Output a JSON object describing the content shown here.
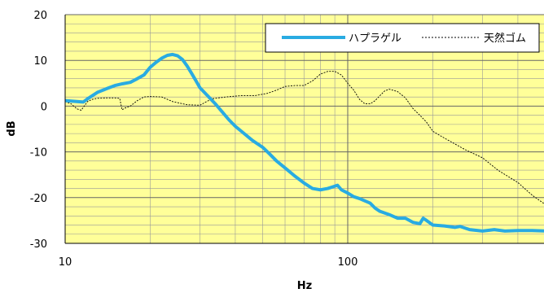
{
  "chart_data": {
    "type": "line",
    "xlabel": "Hz",
    "ylabel": "dB",
    "x_scale": "log",
    "xlim": [
      10,
      500
    ],
    "ylim": [
      -30,
      20
    ],
    "x_ticks": [
      {
        "value": 10,
        "label": "10"
      },
      {
        "value": 100,
        "label": "100"
      }
    ],
    "y_ticks": [
      {
        "value": 20,
        "label": "20"
      },
      {
        "value": 10,
        "label": "10"
      },
      {
        "value": 0,
        "label": "0"
      },
      {
        "value": -10,
        "label": "-10"
      },
      {
        "value": -20,
        "label": "-20"
      },
      {
        "value": -30,
        "label": "-30"
      }
    ],
    "grid": true,
    "legend_position": "top-right",
    "colors": {
      "background": "#ffff99",
      "grid": "#888888",
      "series_1": "#29abe2",
      "series_2": "#000000"
    },
    "series": [
      {
        "name": "ハプラゲル",
        "style": "solid-thick",
        "points": [
          [
            10,
            1.2
          ],
          [
            11,
            1.0
          ],
          [
            11.6,
            0.9
          ],
          [
            12,
            1.6
          ],
          [
            13,
            3.0
          ],
          [
            14,
            3.8
          ],
          [
            15,
            4.5
          ],
          [
            16,
            4.9
          ],
          [
            17,
            5.2
          ],
          [
            18,
            6.0
          ],
          [
            19,
            6.8
          ],
          [
            20,
            8.5
          ],
          [
            21,
            9.6
          ],
          [
            22,
            10.5
          ],
          [
            23,
            11.1
          ],
          [
            24,
            11.3
          ],
          [
            25,
            11.0
          ],
          [
            26,
            10.2
          ],
          [
            27,
            8.8
          ],
          [
            28,
            7.2
          ],
          [
            29,
            5.6
          ],
          [
            30,
            4.0
          ],
          [
            32,
            2.2
          ],
          [
            34,
            0.5
          ],
          [
            36,
            -1.3
          ],
          [
            38,
            -3.0
          ],
          [
            40,
            -4.4
          ],
          [
            43,
            -6.0
          ],
          [
            46,
            -7.5
          ],
          [
            50,
            -9.0
          ],
          [
            53,
            -10.5
          ],
          [
            56,
            -12.0
          ],
          [
            60,
            -13.5
          ],
          [
            65,
            -15.3
          ],
          [
            70,
            -16.8
          ],
          [
            75,
            -18.0
          ],
          [
            80,
            -18.3
          ],
          [
            85,
            -18.0
          ],
          [
            90,
            -17.5
          ],
          [
            92,
            -17.3
          ],
          [
            95,
            -18.3
          ],
          [
            100,
            -19.0
          ],
          [
            105,
            -19.8
          ],
          [
            110,
            -20.2
          ],
          [
            120,
            -21.2
          ],
          [
            125,
            -22.3
          ],
          [
            130,
            -23.0
          ],
          [
            140,
            -23.7
          ],
          [
            150,
            -24.5
          ],
          [
            160,
            -24.5
          ],
          [
            170,
            -25.4
          ],
          [
            180,
            -25.7
          ],
          [
            185,
            -24.5
          ],
          [
            190,
            -25.0
          ],
          [
            200,
            -26.0
          ],
          [
            220,
            -26.2
          ],
          [
            240,
            -26.5
          ],
          [
            250,
            -26.3
          ],
          [
            270,
            -27.0
          ],
          [
            300,
            -27.3
          ],
          [
            330,
            -27.0
          ],
          [
            360,
            -27.3
          ],
          [
            400,
            -27.2
          ],
          [
            450,
            -27.2
          ],
          [
            500,
            -27.3
          ]
        ]
      },
      {
        "name": "天然ゴム",
        "style": "dashed-thin",
        "points": [
          [
            10,
            1.0
          ],
          [
            10.5,
            0.5
          ],
          [
            11,
            -0.6
          ],
          [
            11.4,
            -0.9
          ],
          [
            12,
            1.0
          ],
          [
            12.5,
            1.5
          ],
          [
            13,
            1.7
          ],
          [
            14,
            1.8
          ],
          [
            15,
            1.8
          ],
          [
            15.6,
            1.7
          ],
          [
            15.9,
            -0.8
          ],
          [
            16.3,
            -0.4
          ],
          [
            17,
            0.0
          ],
          [
            18,
            1.2
          ],
          [
            19,
            2.0
          ],
          [
            20,
            2.1
          ],
          [
            22,
            2.0
          ],
          [
            24,
            1.0
          ],
          [
            27,
            0.3
          ],
          [
            30,
            0.2
          ],
          [
            33,
            1.6
          ],
          [
            37,
            2.0
          ],
          [
            42,
            2.3
          ],
          [
            47,
            2.3
          ],
          [
            52,
            2.8
          ],
          [
            56,
            3.5
          ],
          [
            60,
            4.3
          ],
          [
            65,
            4.5
          ],
          [
            70,
            4.5
          ],
          [
            75,
            5.5
          ],
          [
            80,
            7.0
          ],
          [
            85,
            7.6
          ],
          [
            90,
            7.6
          ],
          [
            95,
            6.8
          ],
          [
            100,
            5.0
          ],
          [
            105,
            3.5
          ],
          [
            110,
            1.5
          ],
          [
            115,
            0.5
          ],
          [
            120,
            0.5
          ],
          [
            125,
            1.2
          ],
          [
            130,
            2.3
          ],
          [
            135,
            3.3
          ],
          [
            140,
            3.7
          ],
          [
            150,
            3.2
          ],
          [
            160,
            1.8
          ],
          [
            170,
            -0.5
          ],
          [
            180,
            -2.0
          ],
          [
            190,
            -3.5
          ],
          [
            200,
            -5.5
          ],
          [
            220,
            -7.0
          ],
          [
            240,
            -8.3
          ],
          [
            260,
            -9.5
          ],
          [
            300,
            -11.3
          ],
          [
            340,
            -14.0
          ],
          [
            400,
            -16.7
          ],
          [
            450,
            -19.5
          ],
          [
            500,
            -21.5
          ]
        ]
      }
    ]
  }
}
